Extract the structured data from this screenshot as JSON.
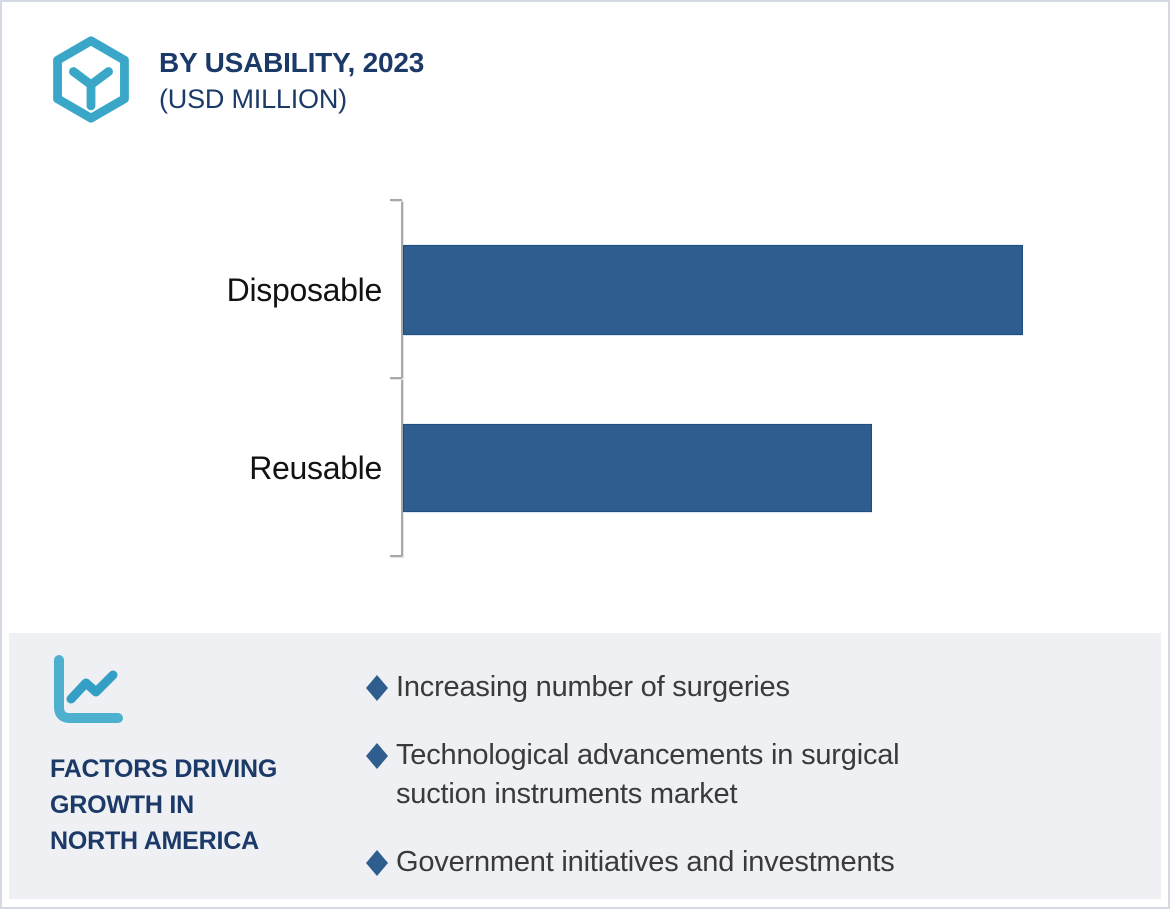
{
  "header": {
    "title": "BY USABILITY, 2023",
    "subtitle": "(USD MILLION)"
  },
  "chart_data": {
    "type": "bar",
    "orientation": "horizontal",
    "title": "BY USABILITY, 2023",
    "subtitle": "(USD MILLION)",
    "categories": [
      "Disposable",
      "Reusable"
    ],
    "values_relative_pct_of_max": [
      100,
      75.6
    ],
    "value_axis_shown": false,
    "data_labels_shown": false,
    "gridlines": false,
    "legend": "none",
    "bar_color": "#2e5e90"
  },
  "factors": {
    "heading_lines": [
      "FACTORS DRIVING",
      "GROWTH IN",
      "NORTH AMERICA"
    ],
    "bullets": [
      {
        "lines": [
          "Increasing number of surgeries"
        ]
      },
      {
        "lines": [
          "Technological advancements in surgical",
          "suction instruments market"
        ]
      },
      {
        "lines": [
          "Government initiatives and investments"
        ]
      }
    ]
  },
  "icons": {
    "logo": "hexagon-cube-y-icon",
    "factors": "line-chart-icon",
    "bullet": "diamond-bullet-icon"
  },
  "colors": {
    "accent_teal": "#3aa6c8",
    "navy": "#1c3a68",
    "bar_blue": "#2e5e90",
    "panel_bg": "#eef0f4",
    "axis_gray": "#a8a8a8",
    "bullet_text": "#3a3a3a",
    "frame_border": "#d5d9e3"
  }
}
